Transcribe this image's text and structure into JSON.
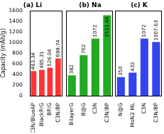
{
  "chart_data": [
    {
      "type": "bar",
      "title": "(a) Li",
      "y_label": "Capacity (mAh/g)",
      "categories": [
        "C3N/BlueAP",
        "BlackP/G",
        "BP/G",
        "C3N/BP"
      ],
      "values": [
        463.34,
        485.31,
        526.04,
        699.74
      ],
      "color": "#ff3333",
      "ylim": [
        0,
        1600
      ],
      "yticks": [
        0,
        200,
        400,
        600,
        800,
        1000,
        1200,
        1400,
        1600
      ],
      "data_labels": true
    },
    {
      "type": "bar",
      "title": "(b) Na",
      "categories": [
        "BilayerG",
        "B@G",
        "C3N",
        "C3N/BP"
      ],
      "values": [
        382,
        762,
        1072,
        1511.44
      ],
      "color": "#22aa22",
      "ylim": [
        0,
        1600
      ],
      "yticks": [
        0,
        200,
        400,
        600,
        800,
        1000,
        1200,
        1400,
        1600
      ],
      "data_labels": true,
      "tick_labels": "x"
    },
    {
      "type": "bar",
      "title": "(c) K",
      "categories": [
        "N@G",
        "MoN2 ML",
        "C3N",
        "C3N/BP"
      ],
      "values": [
        350,
        432,
        1072,
        1007.63
      ],
      "color": "#3344ee",
      "ylim": [
        0,
        1600
      ],
      "yticks": [
        0,
        200,
        400,
        600,
        800,
        1000,
        1200,
        1400,
        1600
      ],
      "data_labels": true,
      "tick_labels": "x"
    }
  ]
}
